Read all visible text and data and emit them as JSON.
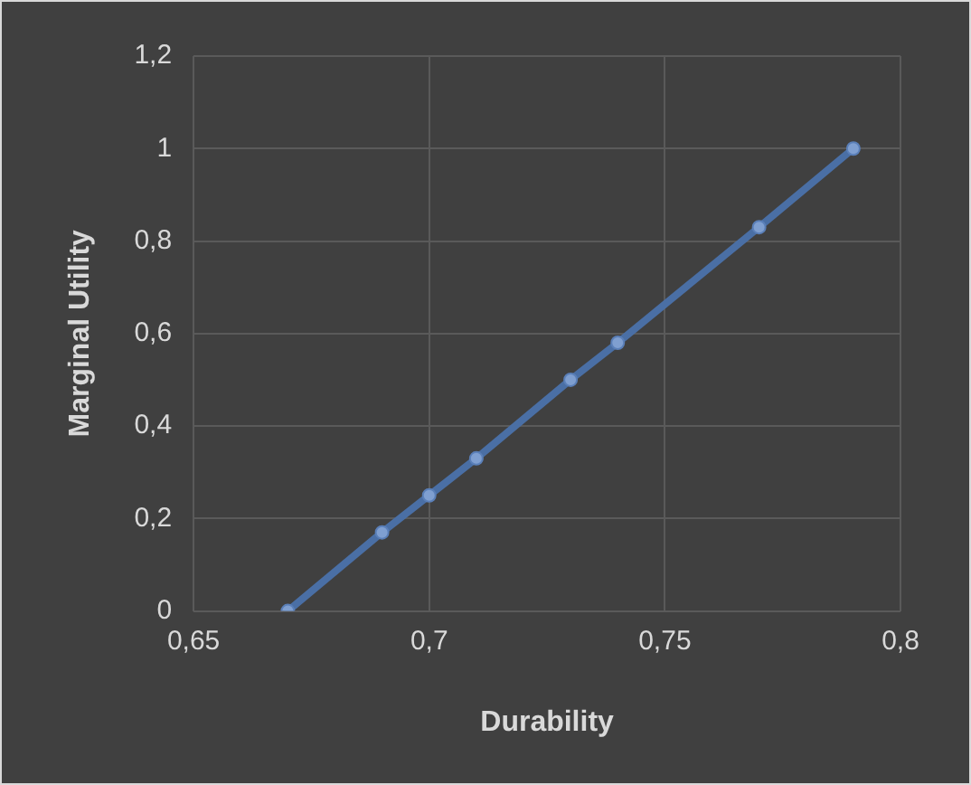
{
  "chart_data": {
    "type": "scatter",
    "xlabel": "Durability",
    "ylabel": "Marginal Utility",
    "x": [
      0.67,
      0.69,
      0.7,
      0.71,
      0.73,
      0.74,
      0.77,
      0.79
    ],
    "series": [
      {
        "type": "line",
        "color": "#4a6fa5",
        "values": [
          0,
          0.17,
          0.25,
          0.33,
          0.5,
          0.58,
          0.83,
          1
        ]
      }
    ],
    "xlim": [
      0.65,
      0.8
    ],
    "ylim": [
      0,
      1.2
    ],
    "xticks": [
      {
        "value": 0.65,
        "label": "0,65"
      },
      {
        "value": 0.7,
        "label": "0,7"
      },
      {
        "value": 0.75,
        "label": "0,75"
      },
      {
        "value": 0.8,
        "label": "0,8"
      }
    ],
    "yticks": [
      0,
      {
        "value": 0.2,
        "label": "0,2"
      },
      {
        "value": 0.4,
        "label": "0,4"
      },
      {
        "value": 0.6,
        "label": "0,6"
      },
      {
        "value": 0.8,
        "label": "0,8"
      },
      1,
      {
        "value": 1.2,
        "label": "1,2"
      }
    ],
    "grid": true,
    "legend": false,
    "marker": "circle",
    "line_style": "solid"
  }
}
